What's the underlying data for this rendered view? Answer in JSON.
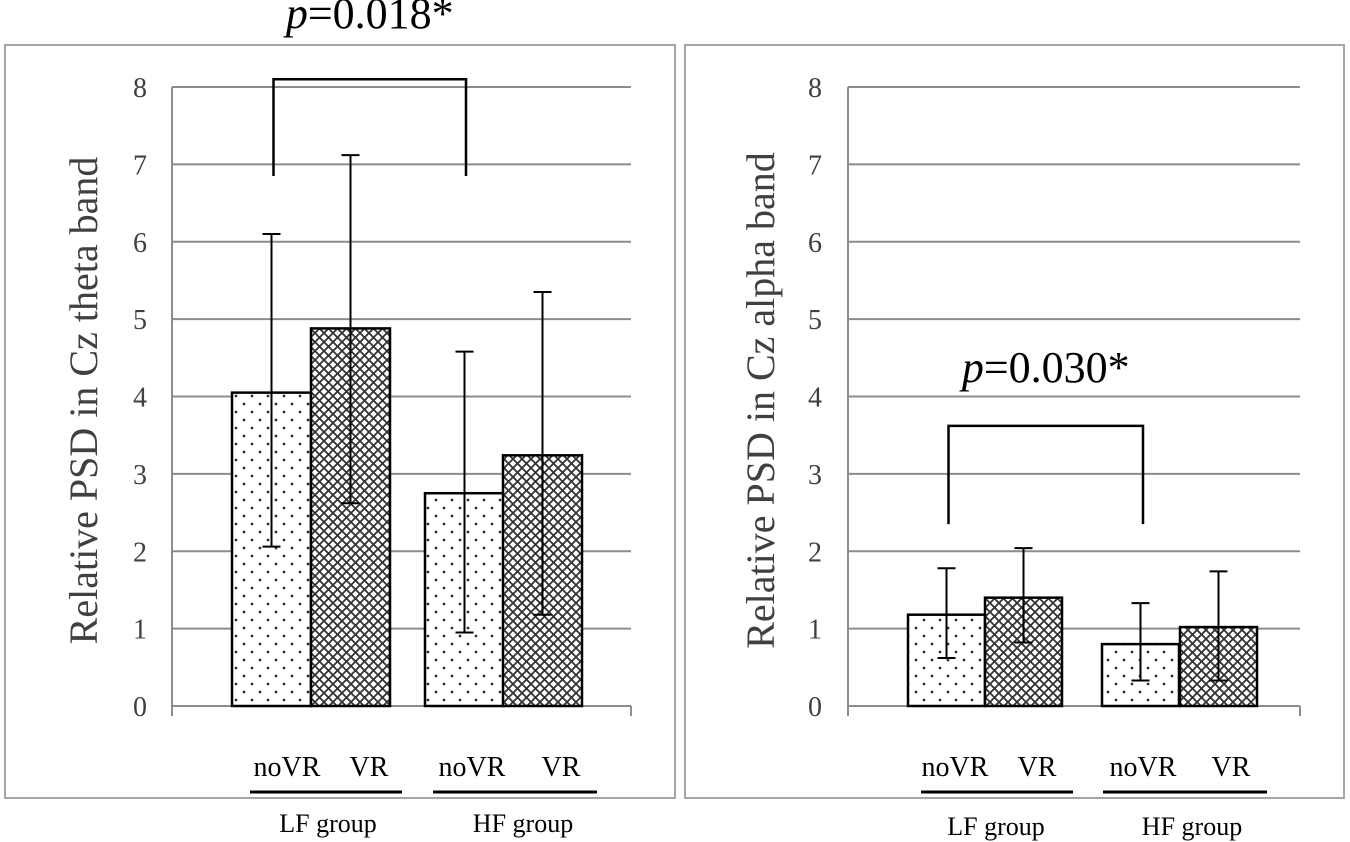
{
  "chart_data": [
    {
      "type": "bar",
      "ylabel": "Relative PSD in Cz theta band",
      "ylim": [
        0,
        8
      ],
      "yticks": [
        "0",
        "1",
        "2",
        "3",
        "4",
        "5",
        "6",
        "7",
        "8"
      ],
      "categories": [
        "noVR",
        "VR",
        "noVR",
        "VR"
      ],
      "groups": [
        "LF group",
        "HF group"
      ],
      "bars": [
        {
          "group": "LF group",
          "condition": "noVR",
          "value": 4.05,
          "err_low": 2.06,
          "err_high": 6.1,
          "pattern": "dots"
        },
        {
          "group": "LF group",
          "condition": "VR",
          "value": 4.88,
          "err_low": 2.62,
          "err_high": 7.12,
          "pattern": "crosshatch"
        },
        {
          "group": "HF group",
          "condition": "noVR",
          "value": 2.75,
          "err_low": 0.95,
          "err_high": 4.58,
          "pattern": "dots"
        },
        {
          "group": "HF group",
          "condition": "VR",
          "value": 3.24,
          "err_low": 1.18,
          "err_high": 5.35,
          "pattern": "crosshatch"
        }
      ],
      "significance": {
        "p_prefix": "p",
        "p_value": "=0.018*",
        "from_group": "LF group",
        "to_group": "HF group",
        "bracket_top": 8.1,
        "bracket_drop": 6.85
      }
    },
    {
      "type": "bar",
      "ylabel": "Relative PSD in Cz alpha band",
      "ylim": [
        0,
        8
      ],
      "yticks": [
        "0",
        "1",
        "2",
        "3",
        "4",
        "5",
        "6",
        "7",
        "8"
      ],
      "categories": [
        "noVR",
        "VR",
        "noVR",
        "VR"
      ],
      "groups": [
        "LF group",
        "HF group"
      ],
      "bars": [
        {
          "group": "LF group",
          "condition": "noVR",
          "value": 1.18,
          "err_low": 0.62,
          "err_high": 1.78,
          "pattern": "dots"
        },
        {
          "group": "LF group",
          "condition": "VR",
          "value": 1.4,
          "err_low": 0.82,
          "err_high": 2.04,
          "pattern": "crosshatch"
        },
        {
          "group": "HF group",
          "condition": "noVR",
          "value": 0.8,
          "err_low": 0.33,
          "err_high": 1.33,
          "pattern": "dots"
        },
        {
          "group": "HF group",
          "condition": "VR",
          "value": 1.02,
          "err_low": 0.33,
          "err_high": 1.74,
          "pattern": "crosshatch"
        }
      ],
      "significance": {
        "p_prefix": "p",
        "p_value": "=0.030*",
        "from_group": "LF group",
        "to_group": "HF group",
        "bracket_top": 3.62,
        "bracket_drop": 2.35
      }
    }
  ]
}
